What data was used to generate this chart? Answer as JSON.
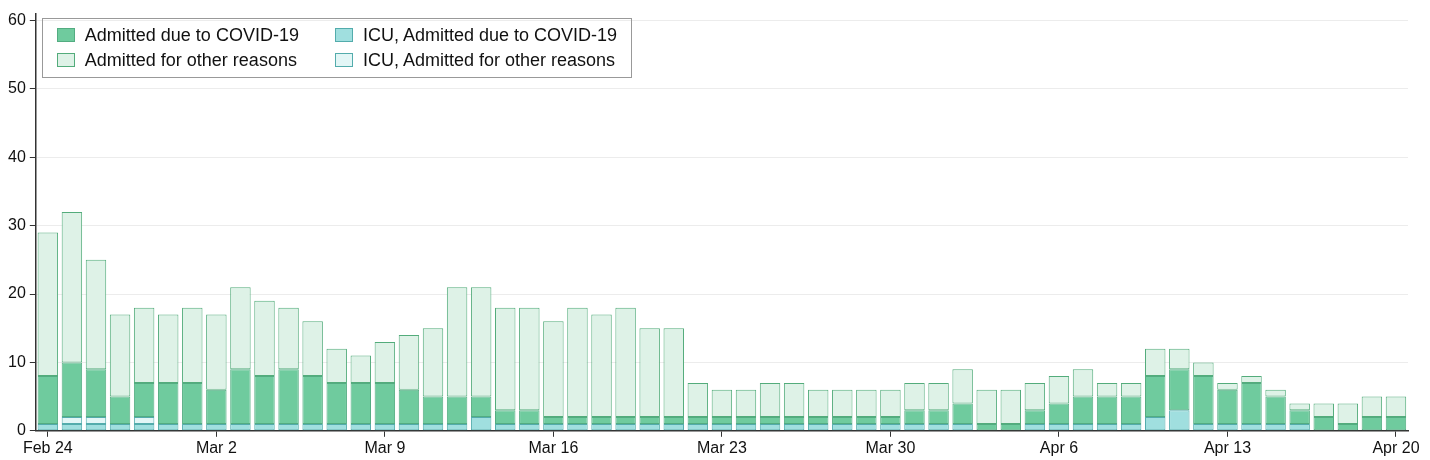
{
  "chart_data": {
    "type": "bar",
    "stacked": true,
    "categories": [
      "Feb 24",
      null,
      null,
      null,
      null,
      null,
      null,
      "Mar 2",
      null,
      null,
      null,
      null,
      null,
      null,
      "Mar 9",
      null,
      null,
      null,
      null,
      null,
      null,
      "Mar 16",
      null,
      null,
      null,
      null,
      null,
      null,
      "Mar 23",
      null,
      null,
      null,
      null,
      null,
      null,
      "Mar 30",
      null,
      null,
      null,
      null,
      null,
      null,
      "Apr 6",
      null,
      null,
      null,
      null,
      null,
      null,
      "Apr 13",
      null,
      null,
      null,
      null,
      null,
      null,
      "Apr 20"
    ],
    "series": [
      {
        "name": "ICU, Admitted due to COVID-19",
        "color": "#a0dfdf",
        "values": [
          1,
          1,
          1,
          1,
          1,
          1,
          1,
          1,
          1,
          1,
          1,
          1,
          1,
          1,
          1,
          1,
          1,
          1,
          2,
          1,
          1,
          1,
          1,
          1,
          1,
          1,
          1,
          1,
          1,
          1,
          1,
          1,
          1,
          1,
          1,
          1,
          1,
          1,
          1,
          0,
          0,
          1,
          1,
          1,
          1,
          1,
          2,
          3,
          1,
          1,
          1,
          1,
          1,
          0,
          0,
          0,
          0
        ]
      },
      {
        "name": "ICU, Admitted for other reasons",
        "color": "#e2f6f6",
        "values": [
          0,
          1,
          1,
          0,
          1,
          0,
          0,
          0,
          0,
          0,
          0,
          0,
          0,
          0,
          0,
          0,
          0,
          0,
          0,
          0,
          0,
          0,
          0,
          0,
          0,
          0,
          0,
          0,
          0,
          0,
          0,
          0,
          0,
          0,
          0,
          0,
          0,
          0,
          0,
          0,
          0,
          0,
          0,
          0,
          0,
          0,
          0,
          0,
          0,
          0,
          0,
          0,
          0,
          0,
          0,
          0,
          0
        ]
      },
      {
        "name": "Admitted due to COVID-19",
        "color": "#6fcb9e",
        "values": [
          7,
          8,
          7,
          4,
          5,
          6,
          6,
          5,
          8,
          7,
          8,
          7,
          6,
          6,
          6,
          5,
          4,
          4,
          3,
          2,
          2,
          1,
          1,
          1,
          1,
          1,
          1,
          1,
          1,
          1,
          1,
          1,
          1,
          1,
          1,
          1,
          2,
          2,
          3,
          1,
          1,
          2,
          3,
          4,
          4,
          4,
          6,
          6,
          7,
          5,
          6,
          4,
          2,
          2,
          1,
          2,
          2
        ]
      },
      {
        "name": "Admitted for other reasons",
        "color": "#def2e7",
        "values": [
          21,
          22,
          16,
          12,
          11,
          10,
          11,
          11,
          12,
          11,
          9,
          8,
          5,
          4,
          6,
          8,
          10,
          16,
          16,
          15,
          15,
          14,
          16,
          15,
          16,
          13,
          13,
          5,
          4,
          4,
          5,
          5,
          4,
          4,
          4,
          4,
          4,
          4,
          5,
          5,
          5,
          4,
          4,
          4,
          2,
          2,
          4,
          3,
          2,
          1,
          1,
          1,
          1,
          2,
          3,
          3,
          3
        ]
      }
    ],
    "ylim": [
      0,
      61
    ],
    "yticks": [
      0,
      10,
      20,
      30,
      40,
      50,
      60
    ],
    "grid": "y",
    "legend": "top left"
  }
}
